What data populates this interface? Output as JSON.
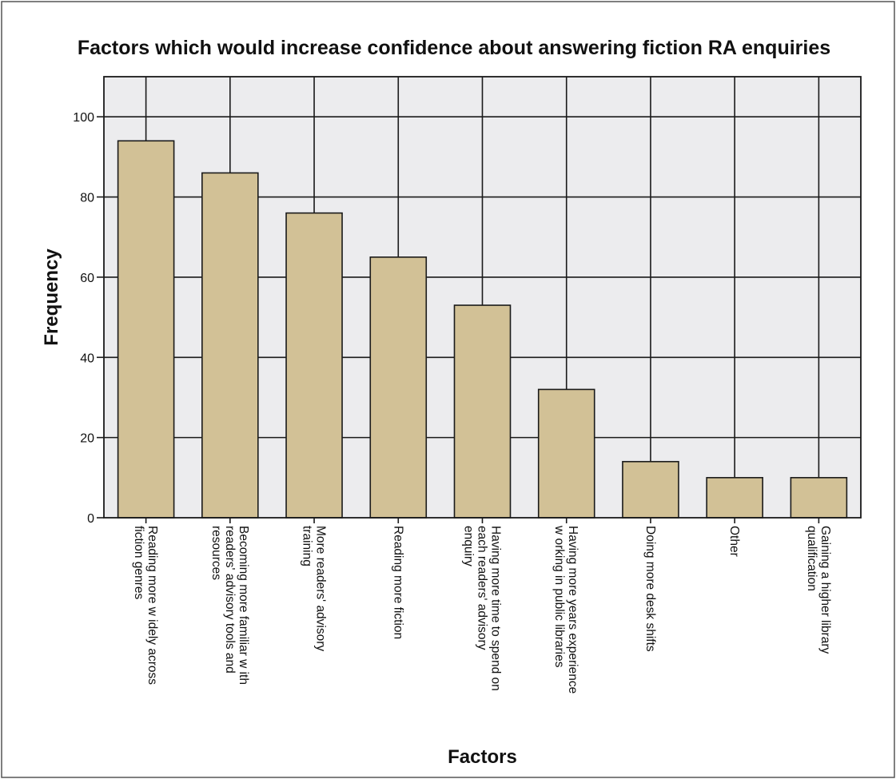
{
  "chart_data": {
    "type": "bar",
    "title": "Factors which would increase confidence about answering fiction RA enquiries",
    "xlabel": "Factors",
    "ylabel": "Frequency",
    "ylim": [
      0,
      110
    ],
    "yticks": [
      0,
      20,
      40,
      60,
      80,
      100
    ],
    "grid": true,
    "categories": [
      [
        "Reading more w idely across",
        "fiction genres"
      ],
      [
        "Becoming more familiar w ith",
        "readers' advisory tools and",
        "resources"
      ],
      [
        "More readers' advisory",
        "training"
      ],
      [
        "Reading more fiction"
      ],
      [
        "Having more time to spend on",
        "each readers' advisory",
        "enquiry"
      ],
      [
        "Having more years experience",
        "w orking in public libraries"
      ],
      [
        "Doing more desk shifts"
      ],
      [
        "Other"
      ],
      [
        "Gaining a higher library",
        "qualification"
      ]
    ],
    "values": [
      94,
      86,
      76,
      65,
      53,
      32,
      14,
      10,
      10
    ],
    "colors": {
      "bar_fill": "#d2c196",
      "bar_stroke": "#1a1a1a",
      "plot_bg": "#ececee",
      "grid": "#1a1a1a"
    }
  }
}
